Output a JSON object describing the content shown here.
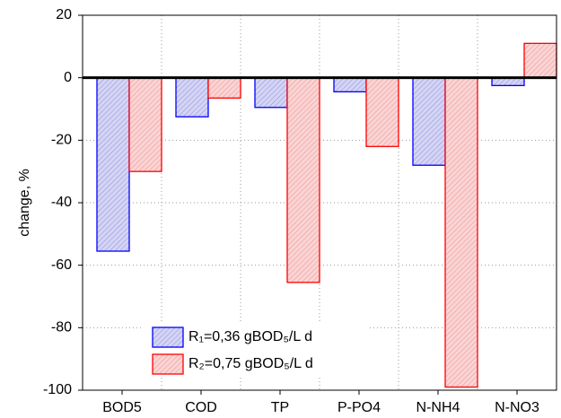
{
  "chart_data": {
    "type": "bar",
    "y_label": "change, %",
    "categories": [
      "BOD5",
      "COD",
      "TP",
      "P-PO4",
      "N-NH4",
      "N-NO3"
    ],
    "series": [
      {
        "name": "R₁=0,36 gBOD₅/L d",
        "color": "#0000ff",
        "values": [
          -55.5,
          -12.5,
          -9.5,
          -4.5,
          -28,
          -2.5
        ]
      },
      {
        "name": "R₂=0,75 gBOD₅/L d",
        "color": "#ff0000",
        "values": [
          -30,
          -6.5,
          -65.5,
          -22,
          -99,
          11
        ]
      }
    ],
    "ylim": [
      -100,
      20
    ],
    "yticks": [
      -100,
      -80,
      -60,
      -40,
      -20,
      0,
      20
    ],
    "grid": true
  }
}
